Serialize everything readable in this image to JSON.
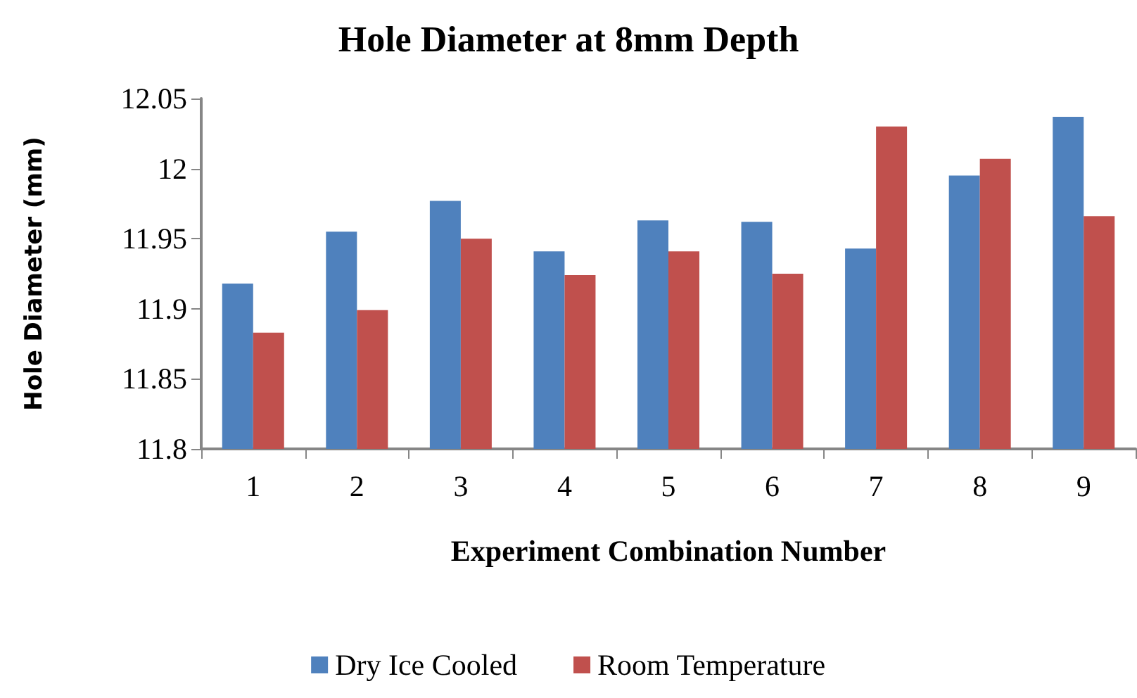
{
  "chart_data": {
    "type": "bar",
    "title": "Hole Diameter at 8mm Depth",
    "xlabel": "Experiment Combination Number",
    "ylabel": "Hole Diameter (mm)",
    "categories": [
      "1",
      "2",
      "3",
      "4",
      "5",
      "6",
      "7",
      "8",
      "9"
    ],
    "series": [
      {
        "name": "Dry Ice Cooled",
        "color": "#4f81bd",
        "values": [
          11.918,
          11.955,
          11.977,
          11.941,
          11.963,
          11.962,
          11.943,
          11.995,
          12.037
        ]
      },
      {
        "name": "Room Temperature",
        "color": "#c0504d",
        "values": [
          11.883,
          11.899,
          11.95,
          11.924,
          11.941,
          11.925,
          12.03,
          12.007,
          11.966
        ]
      }
    ],
    "ylim": [
      11.8,
      12.05
    ],
    "yticks": [
      11.8,
      11.85,
      11.9,
      11.95,
      12,
      12.05
    ],
    "grid": false,
    "legend": "bottom"
  }
}
